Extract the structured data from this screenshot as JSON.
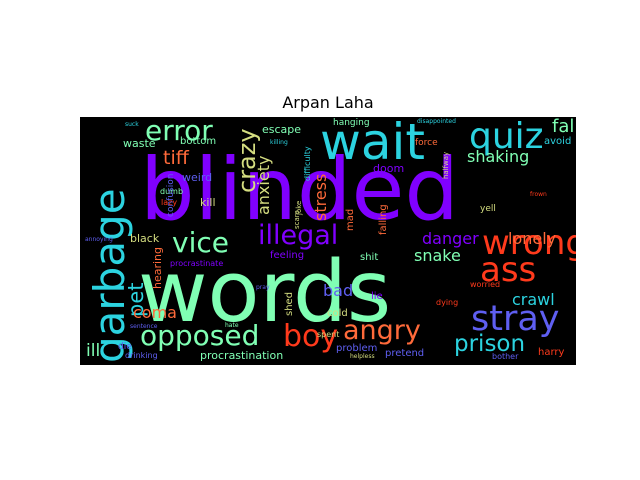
{
  "title": "Arpan Laha",
  "words": [
    {
      "text": "words",
      "color": "#80ffb4"
    },
    {
      "text": "blinded",
      "color": "#8000ff"
    },
    {
      "text": "garbage",
      "color": "#2cd3e0"
    },
    {
      "text": "wait",
      "color": "#2cd3e0"
    },
    {
      "text": "quiz",
      "color": "#2cd3e0"
    },
    {
      "text": "error",
      "color": "#80ffb4"
    },
    {
      "text": "crazy",
      "color": "#d4dd80"
    },
    {
      "text": "fall",
      "color": "#80ffb4"
    },
    {
      "text": "wrong",
      "color": "#ff3a1c"
    },
    {
      "text": "ass",
      "color": "#ff3a1c"
    },
    {
      "text": "stray",
      "color": "#5f5ff2"
    },
    {
      "text": "vice",
      "color": "#80ffb4"
    },
    {
      "text": "illegal",
      "color": "#8000ff"
    },
    {
      "text": "opposed",
      "color": "#80ffb4"
    },
    {
      "text": "boy",
      "color": "#ff3a1c"
    },
    {
      "text": "angry",
      "color": "#ff6a3a"
    },
    {
      "text": "prison",
      "color": "#2cd3e0"
    },
    {
      "text": "pet",
      "color": "#2cd3e0"
    },
    {
      "text": "tiff",
      "color": "#ff6a3a"
    },
    {
      "text": "shaking",
      "color": "#80ffb4"
    },
    {
      "text": "anxiety",
      "color": "#d4dd80"
    },
    {
      "text": "stress",
      "color": "#ff6a3a"
    },
    {
      "text": "danger",
      "color": "#8000ff"
    },
    {
      "text": "lonely",
      "color": "#ff6a3a"
    },
    {
      "text": "snake",
      "color": "#80ffb4"
    },
    {
      "text": "crawl",
      "color": "#2cd3e0"
    },
    {
      "text": "coma",
      "color": "#ff6a3a"
    },
    {
      "text": "bad",
      "color": "#5f5ff2"
    },
    {
      "text": "ill",
      "color": "#80ffb4"
    },
    {
      "text": "procrastination",
      "color": "#80ffb4"
    },
    {
      "text": "escape",
      "color": "#80ffb4"
    },
    {
      "text": "hanging",
      "color": "#80ffb4"
    },
    {
      "text": "waste",
      "color": "#80ffb4"
    },
    {
      "text": "bottom",
      "color": "#80ffb4"
    },
    {
      "text": "doom",
      "color": "#8000ff"
    },
    {
      "text": "weird",
      "color": "#5f5ff2"
    },
    {
      "text": "kill",
      "color": "#d4dd80"
    },
    {
      "text": "dumb",
      "color": "#80ffb4"
    },
    {
      "text": "lazy",
      "color": "#ff3a1c"
    },
    {
      "text": "black",
      "color": "#d4dd80"
    },
    {
      "text": "hearing",
      "color": "#ff6a3a"
    },
    {
      "text": "feeling",
      "color": "#8000ff"
    },
    {
      "text": "procrastinate",
      "color": "#8000ff"
    },
    {
      "text": "mad",
      "color": "#ff6a3a"
    },
    {
      "text": "shit",
      "color": "#80ffb4"
    },
    {
      "text": "falling",
      "color": "#ff6a3a"
    },
    {
      "text": "force",
      "color": "#ff6a3a"
    },
    {
      "text": "avoid",
      "color": "#2cd3e0"
    },
    {
      "text": "yell",
      "color": "#d4dd80"
    },
    {
      "text": "cold",
      "color": "#d4dd80"
    },
    {
      "text": "lie",
      "color": "#8000ff"
    },
    {
      "text": "shed",
      "color": "#d4dd80"
    },
    {
      "text": "die",
      "color": "#5f5ff2"
    },
    {
      "text": "drinking",
      "color": "#5f5ff2"
    },
    {
      "text": "problem",
      "color": "#5f5ff2"
    },
    {
      "text": "pretend",
      "color": "#5f5ff2"
    },
    {
      "text": "harry",
      "color": "#ff3a1c"
    },
    {
      "text": "dying",
      "color": "#ff3a1c"
    },
    {
      "text": "worried",
      "color": "#ff3a1c"
    },
    {
      "text": "bother",
      "color": "#5f5ff2"
    },
    {
      "text": "spent",
      "color": "#d4dd80"
    },
    {
      "text": "confusion",
      "color": "#5f5ff2"
    },
    {
      "text": "difficulty",
      "color": "#2cd3e0"
    },
    {
      "text": "helpless",
      "color": "#d4dd80"
    },
    {
      "text": "halfway",
      "color": "#d4dd80"
    },
    {
      "text": "scare",
      "color": "#d4dd80"
    },
    {
      "text": "joke",
      "color": "#d4dd80"
    },
    {
      "text": "disappointed",
      "color": "#2cd3e0"
    },
    {
      "text": "suck",
      "color": "#2cd3e0"
    },
    {
      "text": "killing",
      "color": "#2cd3e0"
    },
    {
      "text": "frown",
      "color": "#ff3a1c"
    },
    {
      "text": "sentence",
      "color": "#5f5ff2"
    },
    {
      "text": "hate",
      "color": "#80ffb4"
    },
    {
      "text": "annoying",
      "color": "#5f5ff2"
    },
    {
      "text": "pray",
      "color": "#5f5ff2"
    }
  ]
}
